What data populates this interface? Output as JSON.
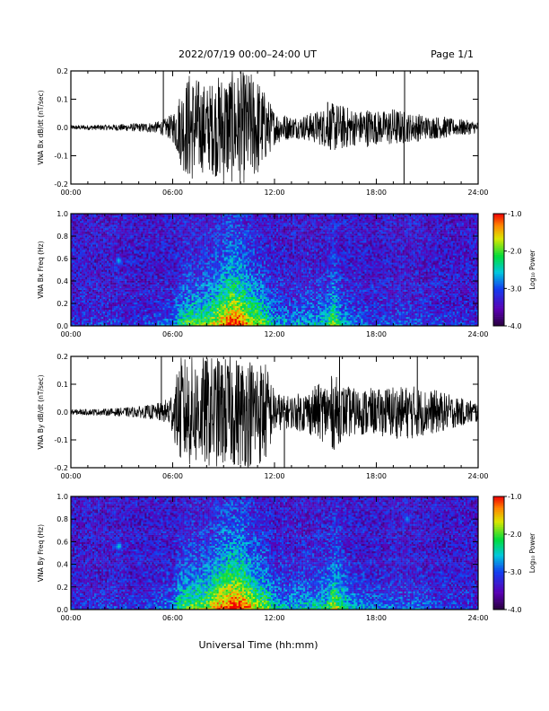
{
  "page": {
    "title": "2022/07/19  00:00–24:00 UT",
    "page_label": "Page 1/1",
    "xlabel": "Universal Time (hh:mm)"
  },
  "chart_data": [
    {
      "type": "line",
      "title": "",
      "ylabel": "VNA Bx dB/dt (nT/sec)",
      "xlabel": "",
      "xlim": [
        "00:00",
        "24:00"
      ],
      "ylim": [
        -0.2,
        0.2
      ],
      "x_ticks": [
        "00:00",
        "06:00",
        "12:00",
        "18:00",
        "24:00"
      ],
      "y_ticks": [
        "0.2",
        "0.1",
        "0.0",
        "-0.1",
        "-0.2"
      ],
      "grid": false,
      "envelope_x_hours": [
        0,
        2,
        4,
        5,
        5.5,
        6,
        6.5,
        7,
        8,
        9,
        9.5,
        10,
        10.5,
        11,
        11.5,
        12,
        12.5,
        13,
        13.5,
        14,
        14.5,
        15,
        15.5,
        16,
        16.5,
        17,
        17.5,
        18,
        18.5,
        19,
        19.5,
        20,
        20.5,
        21,
        21.5,
        22,
        22.5,
        23,
        24
      ],
      "envelope_amplitude": [
        0.008,
        0.01,
        0.015,
        0.02,
        0.03,
        0.05,
        0.14,
        0.2,
        0.15,
        0.2,
        0.2,
        0.2,
        0.2,
        0.18,
        0.12,
        0.06,
        0.05,
        0.04,
        0.04,
        0.05,
        0.06,
        0.07,
        0.09,
        0.08,
        0.07,
        0.06,
        0.07,
        0.06,
        0.06,
        0.07,
        0.06,
        0.05,
        0.05,
        0.04,
        0.04,
        0.04,
        0.03,
        0.03,
        0.02
      ],
      "spikes": [
        {
          "x": "05:27",
          "y": 0.2
        },
        {
          "x": "15:08",
          "y": 0.09
        },
        {
          "x": "19:38",
          "y": -0.2
        },
        {
          "x": "19:40",
          "y": 0.2
        }
      ]
    },
    {
      "type": "heatmap",
      "title": "",
      "ylabel": "VNA Bx Freq (Hz)",
      "xlabel": "",
      "xlim": [
        "00:00",
        "24:00"
      ],
      "ylim": [
        0.0,
        1.0
      ],
      "x_ticks": [
        "00:00",
        "06:00",
        "12:00",
        "18:00",
        "24:00"
      ],
      "y_ticks": [
        "1.0",
        "0.8",
        "0.6",
        "0.4",
        "0.2",
        "0.0"
      ],
      "colorbar": {
        "label": "Log₁₀ Power",
        "range": [
          -4.0,
          -1.0
        ],
        "ticks": [
          "-1.0",
          "-2.0",
          "-3.0",
          "-4.0"
        ],
        "placement": "right"
      },
      "activity_hours": [
        0,
        2,
        4,
        6,
        6.5,
        7,
        8,
        9,
        9.5,
        10,
        10.5,
        11,
        11.5,
        12,
        13,
        14,
        15,
        15.5,
        16,
        17,
        18,
        19,
        20,
        21,
        22,
        23,
        24
      ],
      "activity_level": [
        0.05,
        0.1,
        0.08,
        0.2,
        0.45,
        0.5,
        0.55,
        0.8,
        0.9,
        0.85,
        0.7,
        0.6,
        0.5,
        0.3,
        0.25,
        0.3,
        0.35,
        0.6,
        0.3,
        0.2,
        0.15,
        0.15,
        0.15,
        0.12,
        0.1,
        0.08,
        0.05
      ],
      "features": [
        {
          "x": "02:50",
          "f": 0.58,
          "level": -2.7
        },
        {
          "x": "15:20",
          "f": 0.6,
          "level": -3.0
        }
      ]
    },
    {
      "type": "line",
      "title": "",
      "ylabel": "VNA By dB/dt (nT/sec)",
      "xlabel": "",
      "xlim": [
        "00:00",
        "24:00"
      ],
      "ylim": [
        -0.2,
        0.2
      ],
      "x_ticks": [
        "00:00",
        "06:00",
        "12:00",
        "18:00",
        "24:00"
      ],
      "y_ticks": [
        "0.2",
        "0.1",
        "0.0",
        "-0.1",
        "-0.2"
      ],
      "grid": false,
      "envelope_x_hours": [
        0,
        2,
        4,
        5,
        5.5,
        6,
        6.5,
        7,
        8,
        9,
        9.5,
        10,
        10.5,
        11,
        11.5,
        12,
        12.5,
        13,
        13.5,
        14,
        14.5,
        15,
        15.5,
        16,
        16.5,
        17,
        17.5,
        18,
        18.5,
        19,
        19.5,
        20,
        20.5,
        21,
        21.5,
        22,
        22.5,
        23,
        24
      ],
      "envelope_amplitude": [
        0.01,
        0.012,
        0.02,
        0.03,
        0.04,
        0.08,
        0.2,
        0.2,
        0.2,
        0.2,
        0.2,
        0.2,
        0.2,
        0.2,
        0.18,
        0.08,
        0.06,
        0.06,
        0.07,
        0.08,
        0.1,
        0.11,
        0.14,
        0.1,
        0.09,
        0.08,
        0.09,
        0.08,
        0.09,
        0.1,
        0.09,
        0.1,
        0.09,
        0.08,
        0.08,
        0.07,
        0.06,
        0.05,
        0.04
      ],
      "spikes": [
        {
          "x": "05:20",
          "y": 0.2
        },
        {
          "x": "12:35",
          "y": -0.2
        },
        {
          "x": "15:50",
          "y": 0.2
        },
        {
          "x": "20:25",
          "y": 0.2
        }
      ]
    },
    {
      "type": "heatmap",
      "title": "",
      "ylabel": "VNA By Freq (Hz)",
      "xlabel": "Universal Time (hh:mm)",
      "xlim": [
        "00:00",
        "24:00"
      ],
      "ylim": [
        0.0,
        1.0
      ],
      "x_ticks": [
        "00:00",
        "06:00",
        "12:00",
        "18:00",
        "24:00"
      ],
      "y_ticks": [
        "1.0",
        "0.8",
        "0.6",
        "0.4",
        "0.2",
        "0.0"
      ],
      "colorbar": {
        "label": "Log₁₀ Power",
        "range": [
          -4.0,
          -1.0
        ],
        "ticks": [
          "-1.0",
          "-2.0",
          "-3.0",
          "-4.0"
        ],
        "placement": "right"
      },
      "activity_hours": [
        0,
        2,
        4,
        6,
        6.5,
        7,
        8,
        9,
        9.5,
        10,
        10.5,
        11,
        11.5,
        12,
        13,
        14,
        15,
        15.5,
        16,
        16.5,
        17,
        18,
        19,
        20,
        21,
        22,
        23,
        24
      ],
      "activity_level": [
        0.05,
        0.1,
        0.08,
        0.25,
        0.5,
        0.55,
        0.6,
        0.85,
        0.9,
        0.9,
        0.75,
        0.65,
        0.55,
        0.35,
        0.3,
        0.35,
        0.4,
        0.65,
        0.5,
        0.3,
        0.25,
        0.2,
        0.2,
        0.2,
        0.15,
        0.12,
        0.1,
        0.06
      ],
      "features": [
        {
          "x": "02:50",
          "f": 0.56,
          "level": -2.6
        },
        {
          "x": "19:50",
          "f": 0.8,
          "level": -2.8
        }
      ]
    }
  ]
}
